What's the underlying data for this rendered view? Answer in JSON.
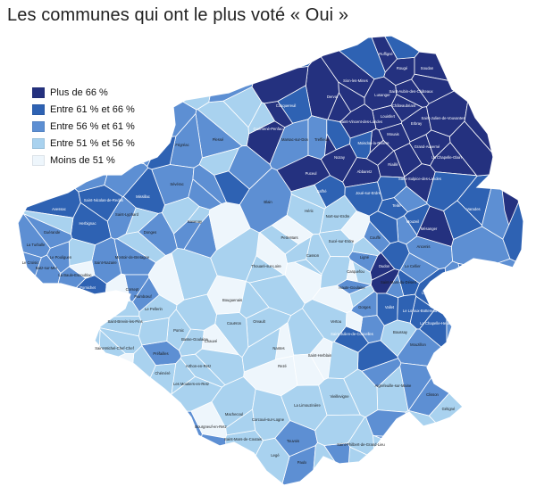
{
  "title": "Les communes qui ont le plus voté « Oui »",
  "legend": {
    "items": [
      {
        "label": "Plus de 66 %",
        "color": "#24317f"
      },
      {
        "label": "Entre 61 % et 66 %",
        "color": "#2e62b3"
      },
      {
        "label": "Entre 56 % et 61 %",
        "color": "#5d8fd3"
      },
      {
        "label": "Entre 51 % et 56 %",
        "color": "#a9d2ef"
      },
      {
        "label": "Moins de 51 %",
        "color": "#eef6fc"
      }
    ]
  },
  "communes": [
    {
      "name": "Ruffigné",
      "cls": 0
    },
    {
      "name": "Rougé",
      "cls": 0
    },
    {
      "name": "Soudan",
      "cls": 0
    },
    {
      "name": "Sion-les-Mines",
      "cls": 0
    },
    {
      "name": "Lusanger",
      "cls": 0
    },
    {
      "name": "Saint-Aubin-des-Châteaux",
      "cls": 0
    },
    {
      "name": "Châteaubriant",
      "cls": 0
    },
    {
      "name": "Derval",
      "cls": 0
    },
    {
      "name": "Louisfert",
      "cls": 0
    },
    {
      "name": "Saint-Vincent-des-Landes",
      "cls": 0
    },
    {
      "name": "Erbray",
      "cls": 0
    },
    {
      "name": "Saint-Julien-de-Vouvantes",
      "cls": 0
    },
    {
      "name": "Mouais",
      "cls": 0
    },
    {
      "name": "Conquereuil",
      "cls": 1
    },
    {
      "name": "Guémené-Penfao",
      "cls": 0
    },
    {
      "name": "Marsac-sur-Don",
      "cls": 2
    },
    {
      "name": "Treffieux",
      "cls": 2
    },
    {
      "name": "Moisdon-la-Rivière",
      "cls": 0
    },
    {
      "name": "Grand-Auverné",
      "cls": 0
    },
    {
      "name": "La Chapelle-Glain",
      "cls": 0
    },
    {
      "name": "Nozay",
      "cls": 0
    },
    {
      "name": "Abbaretz",
      "cls": 0
    },
    {
      "name": "Riaillé",
      "cls": 0
    },
    {
      "name": "Saint-Sulpice-des-Landes",
      "cls": 0
    },
    {
      "name": "Puceul",
      "cls": 0
    },
    {
      "name": "Saffré",
      "cls": 1
    },
    {
      "name": "Joué-sur-Erdre",
      "cls": 1
    },
    {
      "name": "Teillé",
      "cls": 1
    },
    {
      "name": "Mouzeil",
      "cls": 1
    },
    {
      "name": "Varades",
      "cls": 1
    },
    {
      "name": "Ancenis",
      "cls": 2
    },
    {
      "name": "Mésanger",
      "cls": 0
    },
    {
      "name": "Oudon",
      "cls": 0
    },
    {
      "name": "Plessé",
      "cls": 2
    },
    {
      "name": "Fégréac",
      "cls": 2
    },
    {
      "name": "Avessac",
      "cls": 1
    },
    {
      "name": "Saint-Nicolas-de-Redon",
      "cls": 1
    },
    {
      "name": "Sévérac",
      "cls": 2
    },
    {
      "name": "Missillac",
      "cls": 1
    },
    {
      "name": "Herbignac",
      "cls": 1
    },
    {
      "name": "Saint-Lyphard",
      "cls": 2
    },
    {
      "name": "Guérande",
      "cls": 2
    },
    {
      "name": "La Turballe",
      "cls": 2
    },
    {
      "name": "Le Croisic",
      "cls": 2
    },
    {
      "name": "Batz-sur-Mer",
      "cls": 2
    },
    {
      "name": "Le Pouliguen",
      "cls": 2
    },
    {
      "name": "La Baule-Escoublac",
      "cls": 2
    },
    {
      "name": "Pornichet",
      "cls": 1
    },
    {
      "name": "Saint-Nazaire",
      "cls": 2
    },
    {
      "name": "Montoir-de-Bretagne",
      "cls": 2
    },
    {
      "name": "Donges",
      "cls": 2
    },
    {
      "name": "Savenay",
      "cls": 2
    },
    {
      "name": "Blain",
      "cls": 2
    },
    {
      "name": "Héric",
      "cls": 3
    },
    {
      "name": "Nort-sur-Erdre",
      "cls": 3
    },
    {
      "name": "Petit-Mars",
      "cls": 3
    },
    {
      "name": "Casson",
      "cls": 3
    },
    {
      "name": "Sucé-sur-Erdre",
      "cls": 3
    },
    {
      "name": "Carquefou",
      "cls": 3
    },
    {
      "name": "Thouaré-sur-Loire",
      "cls": 3
    },
    {
      "name": "Orvault",
      "cls": 3
    },
    {
      "name": "Nantes",
      "cls": 4
    },
    {
      "name": "Rezé",
      "cls": 4
    },
    {
      "name": "Bouguenais",
      "cls": 4
    },
    {
      "name": "Couëron",
      "cls": 3
    },
    {
      "name": "Saint-Herblain",
      "cls": 4
    },
    {
      "name": "Vertou",
      "cls": 3
    },
    {
      "name": "Basse-Goulaine",
      "cls": 3
    },
    {
      "name": "Le Pellerin",
      "cls": 3
    },
    {
      "name": "Paimbœuf",
      "cls": 2
    },
    {
      "name": "Corsept",
      "cls": 2
    },
    {
      "name": "Saint-Brevin-les-Pins",
      "cls": 3
    },
    {
      "name": "Saint-Michel-Chef-Chef",
      "cls": 3
    },
    {
      "name": "Préfailles",
      "cls": 2
    },
    {
      "name": "Pornic",
      "cls": 3
    },
    {
      "name": "Chauvé",
      "cls": 4
    },
    {
      "name": "Arthon-en-Retz",
      "cls": 3
    },
    {
      "name": "Chéméré",
      "cls": 3
    },
    {
      "name": "Les Moutiers-en-Retz",
      "cls": 3
    },
    {
      "name": "Bourgneuf-en-Retz",
      "cls": 4
    },
    {
      "name": "Machecoul",
      "cls": 3
    },
    {
      "name": "Saint-Mars-de-Coutais",
      "cls": 3
    },
    {
      "name": "Paulx",
      "cls": 2
    },
    {
      "name": "Legé",
      "cls": 3
    },
    {
      "name": "Touvois",
      "cls": 2
    },
    {
      "name": "Corcoué-sur-Logne",
      "cls": 3
    },
    {
      "name": "La Limouzinière",
      "cls": 3
    },
    {
      "name": "Saint-Philbert-de-Grand-Lieu",
      "cls": 3
    },
    {
      "name": "Vieillevigne",
      "cls": 3
    },
    {
      "name": "Aigrefeuille-sur-Maine",
      "cls": 3
    },
    {
      "name": "Clisson",
      "cls": 2
    },
    {
      "name": "Gétigné",
      "cls": 3
    },
    {
      "name": "Boussay",
      "cls": 3
    },
    {
      "name": "Vallet",
      "cls": 1
    },
    {
      "name": "Le Loroux-Bottereau",
      "cls": 1
    },
    {
      "name": "Le Landreau",
      "cls": 1
    },
    {
      "name": "La Chapelle-Heulin",
      "cls": 1
    },
    {
      "name": "Mouzillon",
      "cls": 2
    },
    {
      "name": "Gorges",
      "cls": 2
    },
    {
      "name": "Saint-Julien-de-Concelles",
      "cls": 1
    },
    {
      "name": "Haute-Goulaine",
      "cls": 2
    },
    {
      "name": "Le Cellier",
      "cls": 2
    },
    {
      "name": "Couffé",
      "cls": 2
    },
    {
      "name": "Ligné",
      "cls": 2
    },
    {
      "name": "Saint-Mars-du-Désert",
      "cls": 2
    },
    {
      "name": "Mauves-sur-Loire",
      "cls": 2
    }
  ]
}
